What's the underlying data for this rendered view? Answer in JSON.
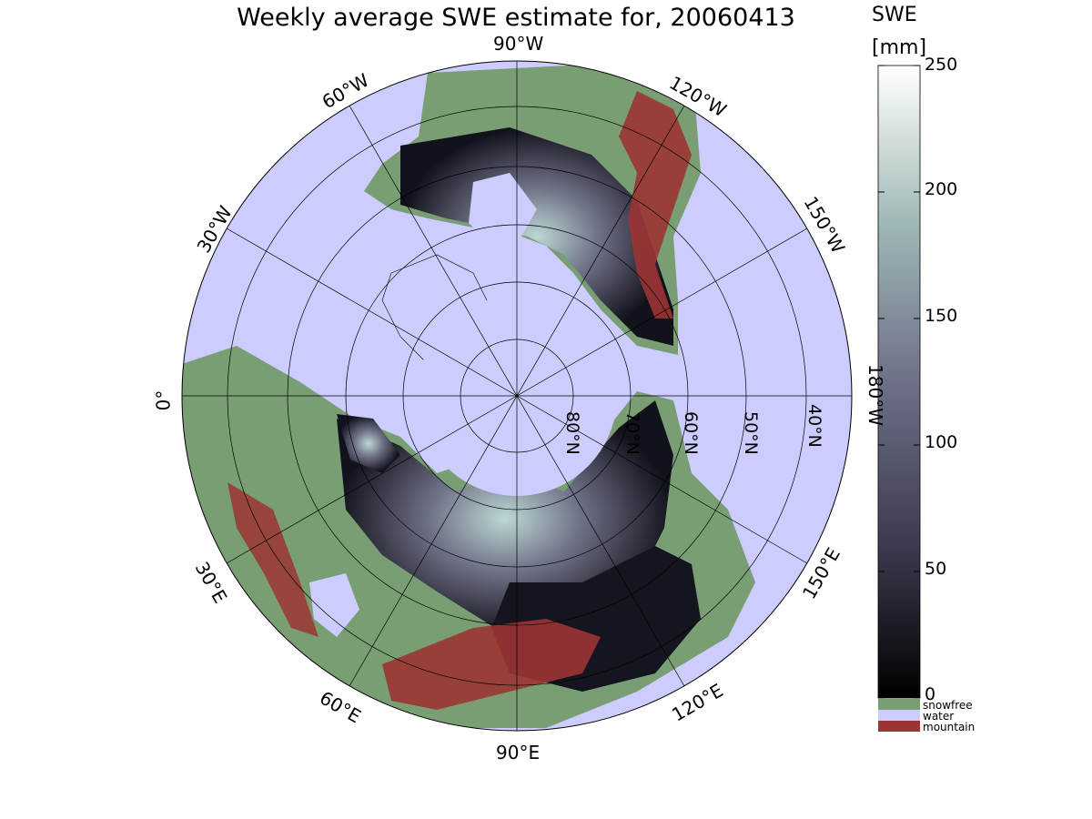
{
  "title": "Weekly average SWE estimate for, 20060413",
  "longitude_labels": [
    {
      "text": "90°W"
    },
    {
      "text": "60°W"
    },
    {
      "text": "120°W"
    },
    {
      "text": "30°W"
    },
    {
      "text": "150°W"
    },
    {
      "text": "0°"
    },
    {
      "text": "180°W"
    },
    {
      "text": "30°E"
    },
    {
      "text": "150°E"
    },
    {
      "text": "60°E"
    },
    {
      "text": "120°E"
    },
    {
      "text": "90°E"
    }
  ],
  "latitude_labels": [
    "80°N",
    "70°N",
    "60°N",
    "50°N",
    "40°N"
  ],
  "colorbar": {
    "title_line1": "SWE",
    "title_line2": "[mm]",
    "ticks": [
      "0",
      "50",
      "100",
      "150",
      "200",
      "250"
    ],
    "range": [
      0,
      250
    ],
    "categories": [
      {
        "label": "snowfree",
        "color": "#7a9e74"
      },
      {
        "label": "water",
        "color": "#ccccfe"
      },
      {
        "label": "mountain",
        "color": "#9c3434"
      }
    ]
  },
  "colors": {
    "ocean": "#ccccfe",
    "snowfree": "#7a9e74",
    "mountain": "#9c3434",
    "swe_low": "#000000",
    "swe_mid": "#5f5f7a",
    "swe_high": "#ffffff"
  }
}
